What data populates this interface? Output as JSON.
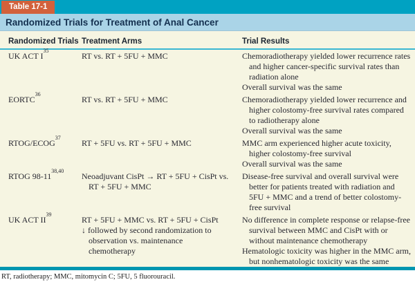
{
  "tab_label": "Table 17-1",
  "title": "Randomized Trials for Treatment of Anal Cancer",
  "columns": [
    "Randomized Trials",
    "Treatment Arms",
    "Trial Results"
  ],
  "rows": [
    {
      "trial": "UK ACT I",
      "ref": "35",
      "arms": [
        "RT vs. RT + 5FU + MMC"
      ],
      "results": [
        "Chemoradiotherapy yielded lower recurrence rates and higher cancer-specific survival rates than radiation alone",
        "Overall survival was the same"
      ]
    },
    {
      "trial": "EORTC",
      "ref": "36",
      "arms": [
        "RT vs. RT + 5FU + MMC"
      ],
      "results": [
        "Chemoradiotherapy yielded lower recurrence and higher colostomy-free survival rates compared to radiotherapy alone",
        "Overall survival was the same"
      ]
    },
    {
      "trial": "RTOG/ECOG",
      "ref": "37",
      "arms": [
        "RT + 5FU vs. RT + 5FU + MMC"
      ],
      "results": [
        "MMC arm experienced higher acute toxicity, higher colostomy-free survival",
        "Overall survival was the same"
      ]
    },
    {
      "trial": "RTOG 98-11",
      "ref": "38,40",
      "arms": [
        "Neoadjuvant CisPt → RT + 5FU + CisPt vs. RT + 5FU + MMC"
      ],
      "results": [
        "Disease-free survival and overall survival were better for patients treated with radiation and 5FU + MMC and a trend of better colostomy-free survival"
      ]
    },
    {
      "trial": "UK ACT II",
      "ref": "39",
      "arms": [
        "RT + 5FU + MMC vs. RT + 5FU + CisPt",
        "↓ followed by second randomization to observation vs. maintenance chemotherapy"
      ],
      "results": [
        "No difference in complete response or relapse-free survival between MMC and CisPt with or without maintenance chemotherapy",
        "Hematologic toxicity was higher in the MMC arm, but nonhematologic toxicity was the same"
      ]
    }
  ],
  "footnote": "RT, radiotherapy; MMC, mitomycin C; 5FU, 5 fluorouracil.",
  "colors": {
    "top_band": "#00a2c2",
    "tab_background": "#d2613b",
    "tab_text": "#ffffff",
    "title_band": "#aad4e7",
    "title_text": "#14304f",
    "table_background": "#f6f5e2",
    "header_rule": "#39b7d2",
    "bottom_bar": "#0096b0",
    "body_text": "#272730"
  }
}
